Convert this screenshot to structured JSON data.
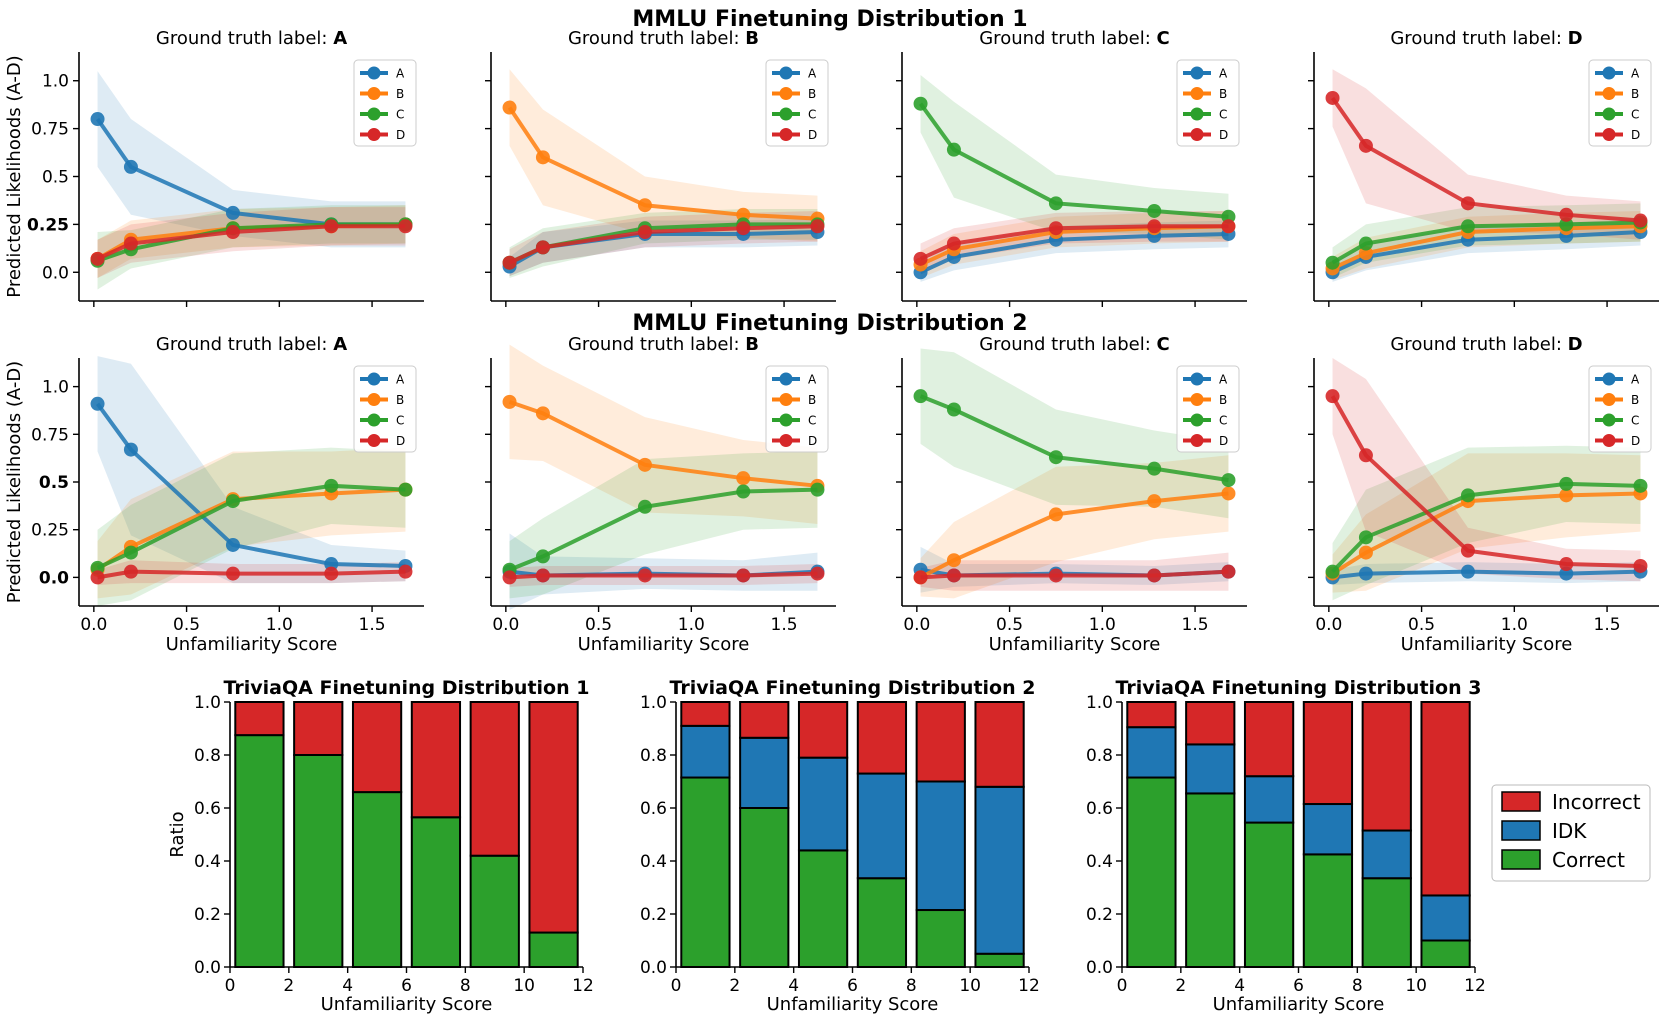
{
  "chart_data": {
    "mmlu": [
      {
        "suptitle": "MMLU Finetuning Distribution 1",
        "title_prefix": "Ground truth label: ",
        "ylabel": "Predicted Likelihoods (A-D)",
        "xlabel": "",
        "type": "line",
        "x": [
          0.02,
          0.2,
          0.75,
          1.28,
          1.68
        ],
        "xlim": [
          -0.08,
          1.78
        ],
        "ylim": [
          -0.15,
          1.15
        ],
        "yticks": [
          "0.0",
          "0.25",
          "0.5",
          "0.75",
          "1.0"
        ],
        "ytick_values": [
          0,
          0.25,
          0.5,
          0.75,
          1.0
        ],
        "bold_ytick": "0.25",
        "xticks": [],
        "legend": [
          "A",
          "B",
          "C",
          "D"
        ],
        "panels": [
          {
            "label": "A",
            "series": [
              {
                "name": "A",
                "values": [
                  0.8,
                  0.55,
                  0.31,
                  0.25,
                  0.25
                ],
                "band": [
                  0.25,
                  0.25,
                  0.12,
                  0.12,
                  0.12
                ]
              },
              {
                "name": "B",
                "values": [
                  0.07,
                  0.17,
                  0.23,
                  0.24,
                  0.25
                ],
                "band": [
                  0.1,
                  0.1,
                  0.1,
                  0.1,
                  0.1
                ]
              },
              {
                "name": "C",
                "values": [
                  0.06,
                  0.12,
                  0.23,
                  0.25,
                  0.25
                ],
                "band": [
                  0.15,
                  0.1,
                  0.1,
                  0.1,
                  0.1
                ]
              },
              {
                "name": "D",
                "values": [
                  0.07,
                  0.15,
                  0.21,
                  0.24,
                  0.24
                ],
                "band": [
                  0.1,
                  0.1,
                  0.1,
                  0.1,
                  0.1
                ]
              }
            ]
          },
          {
            "label": "B",
            "series": [
              {
                "name": "A",
                "values": [
                  0.03,
                  0.13,
                  0.2,
                  0.2,
                  0.21
                ],
                "band": [
                  0.05,
                  0.08,
                  0.07,
                  0.07,
                  0.07
                ]
              },
              {
                "name": "B",
                "values": [
                  0.86,
                  0.6,
                  0.35,
                  0.3,
                  0.28
                ],
                "band": [
                  0.2,
                  0.25,
                  0.15,
                  0.12,
                  0.12
                ]
              },
              {
                "name": "C",
                "values": [
                  0.05,
                  0.13,
                  0.23,
                  0.25,
                  0.25
                ],
                "band": [
                  0.08,
                  0.1,
                  0.08,
                  0.08,
                  0.08
                ]
              },
              {
                "name": "D",
                "values": [
                  0.05,
                  0.13,
                  0.21,
                  0.23,
                  0.24
                ],
                "band": [
                  0.07,
                  0.08,
                  0.08,
                  0.08,
                  0.08
                ]
              }
            ]
          },
          {
            "label": "C",
            "series": [
              {
                "name": "A",
                "values": [
                  0.0,
                  0.08,
                  0.17,
                  0.19,
                  0.2
                ],
                "band": [
                  0.05,
                  0.07,
                  0.07,
                  0.07,
                  0.07
                ]
              },
              {
                "name": "B",
                "values": [
                  0.04,
                  0.12,
                  0.21,
                  0.23,
                  0.24
                ],
                "band": [
                  0.07,
                  0.08,
                  0.08,
                  0.08,
                  0.08
                ]
              },
              {
                "name": "C",
                "values": [
                  0.88,
                  0.64,
                  0.36,
                  0.32,
                  0.29
                ],
                "band": [
                  0.15,
                  0.25,
                  0.15,
                  0.12,
                  0.12
                ]
              },
              {
                "name": "D",
                "values": [
                  0.07,
                  0.15,
                  0.23,
                  0.24,
                  0.24
                ],
                "band": [
                  0.08,
                  0.08,
                  0.08,
                  0.08,
                  0.08
                ]
              }
            ]
          },
          {
            "label": "D",
            "series": [
              {
                "name": "A",
                "values": [
                  0.0,
                  0.08,
                  0.17,
                  0.19,
                  0.21
                ],
                "band": [
                  0.05,
                  0.07,
                  0.07,
                  0.07,
                  0.07
                ]
              },
              {
                "name": "B",
                "values": [
                  0.02,
                  0.1,
                  0.21,
                  0.23,
                  0.24
                ],
                "band": [
                  0.06,
                  0.08,
                  0.08,
                  0.08,
                  0.08
                ]
              },
              {
                "name": "C",
                "values": [
                  0.05,
                  0.15,
                  0.24,
                  0.25,
                  0.26
                ],
                "band": [
                  0.08,
                  0.1,
                  0.1,
                  0.1,
                  0.1
                ]
              },
              {
                "name": "D",
                "values": [
                  0.91,
                  0.66,
                  0.36,
                  0.3,
                  0.27
                ],
                "band": [
                  0.15,
                  0.3,
                  0.15,
                  0.1,
                  0.1
                ]
              }
            ]
          }
        ]
      },
      {
        "suptitle": "MMLU Finetuning Distribution 2",
        "title_prefix": "Ground truth label: ",
        "ylabel": "Predicted Likelihoods (A-D)",
        "xlabel": "Unfamiliarity Score",
        "type": "line",
        "x": [
          0.02,
          0.2,
          0.75,
          1.28,
          1.68
        ],
        "xlim": [
          -0.08,
          1.78
        ],
        "ylim": [
          -0.15,
          1.15
        ],
        "yticks": [
          "0.0",
          "0.25",
          "0.5",
          "0.75",
          "1.0"
        ],
        "ytick_values": [
          0,
          0.25,
          0.5,
          0.75,
          1.0
        ],
        "bold_ytick": "0.5",
        "bold_ytick2": "0.0",
        "xticks": [
          "0.0",
          "0.5",
          "1.0",
          "1.5"
        ],
        "xtick_values": [
          0,
          0.5,
          1.0,
          1.5
        ],
        "legend": [
          "A",
          "B",
          "C",
          "D"
        ],
        "panels": [
          {
            "label": "A",
            "series": [
              {
                "name": "A",
                "values": [
                  0.91,
                  0.67,
                  0.17,
                  0.07,
                  0.06
                ],
                "band": [
                  0.25,
                  0.45,
                  0.2,
                  0.1,
                  0.08
                ]
              },
              {
                "name": "B",
                "values": [
                  0.04,
                  0.16,
                  0.41,
                  0.44,
                  0.46
                ],
                "band": [
                  0.15,
                  0.25,
                  0.25,
                  0.22,
                  0.22
                ]
              },
              {
                "name": "C",
                "values": [
                  0.05,
                  0.13,
                  0.4,
                  0.48,
                  0.46
                ],
                "band": [
                  0.2,
                  0.25,
                  0.25,
                  0.2,
                  0.2
                ]
              },
              {
                "name": "D",
                "values": [
                  0.0,
                  0.03,
                  0.02,
                  0.02,
                  0.03
                ],
                "band": [
                  0.04,
                  0.06,
                  0.05,
                  0.05,
                  0.05
                ]
              }
            ]
          },
          {
            "label": "B",
            "series": [
              {
                "name": "A",
                "values": [
                  0.03,
                  0.01,
                  0.02,
                  0.01,
                  0.03
                ],
                "band": [
                  0.2,
                  0.1,
                  0.08,
                  0.08,
                  0.1
                ]
              },
              {
                "name": "B",
                "values": [
                  0.92,
                  0.86,
                  0.59,
                  0.52,
                  0.48
                ],
                "band": [
                  0.3,
                  0.25,
                  0.25,
                  0.2,
                  0.2
                ]
              },
              {
                "name": "C",
                "values": [
                  0.04,
                  0.11,
                  0.37,
                  0.45,
                  0.46
                ],
                "band": [
                  0.15,
                  0.2,
                  0.25,
                  0.2,
                  0.2
                ]
              },
              {
                "name": "D",
                "values": [
                  0.0,
                  0.01,
                  0.01,
                  0.01,
                  0.02
                ],
                "band": [
                  0.05,
                  0.05,
                  0.05,
                  0.05,
                  0.05
                ]
              }
            ]
          },
          {
            "label": "C",
            "series": [
              {
                "name": "A",
                "values": [
                  0.04,
                  0.01,
                  0.02,
                  0.01,
                  0.03
                ],
                "band": [
                  0.12,
                  0.06,
                  0.05,
                  0.05,
                  0.05
                ]
              },
              {
                "name": "B",
                "values": [
                  0.0,
                  0.09,
                  0.33,
                  0.4,
                  0.44
                ],
                "band": [
                  0.1,
                  0.2,
                  0.25,
                  0.2,
                  0.2
                ]
              },
              {
                "name": "C",
                "values": [
                  0.95,
                  0.88,
                  0.63,
                  0.57,
                  0.51
                ],
                "band": [
                  0.25,
                  0.3,
                  0.25,
                  0.2,
                  0.2
                ]
              },
              {
                "name": "D",
                "values": [
                  0.0,
                  0.01,
                  0.01,
                  0.01,
                  0.03
                ],
                "band": [
                  0.05,
                  0.08,
                  0.08,
                  0.08,
                  0.1
                ]
              }
            ]
          },
          {
            "label": "D",
            "series": [
              {
                "name": "A",
                "values": [
                  0.0,
                  0.02,
                  0.03,
                  0.02,
                  0.03
                ],
                "band": [
                  0.04,
                  0.05,
                  0.05,
                  0.05,
                  0.05
                ]
              },
              {
                "name": "B",
                "values": [
                  0.02,
                  0.13,
                  0.4,
                  0.43,
                  0.44
                ],
                "band": [
                  0.1,
                  0.2,
                  0.25,
                  0.22,
                  0.2
                ]
              },
              {
                "name": "C",
                "values": [
                  0.03,
                  0.21,
                  0.43,
                  0.49,
                  0.48
                ],
                "band": [
                  0.15,
                  0.25,
                  0.25,
                  0.2,
                  0.2
                ]
              },
              {
                "name": "D",
                "values": [
                  0.95,
                  0.64,
                  0.14,
                  0.07,
                  0.06
                ],
                "band": [
                  0.2,
                  0.4,
                  0.12,
                  0.08,
                  0.08
                ]
              }
            ]
          }
        ]
      }
    ],
    "triviaqa": [
      {
        "type": "bar",
        "title": "TriviaQA Finetuning Distribution 1",
        "ylabel": "Ratio",
        "xlabel": "Unfamiliarity Score",
        "xlim": [
          0,
          12
        ],
        "ylim": [
          0,
          1
        ],
        "xticks": [
          "0",
          "2",
          "4",
          "6",
          "8",
          "10",
          "12"
        ],
        "yticks": [
          "0.0",
          "0.2",
          "0.4",
          "0.6",
          "0.8",
          "1.0"
        ],
        "x_centers": [
          1,
          3,
          5,
          7,
          9,
          11
        ],
        "series": [
          {
            "name": "Correct",
            "values": [
              0.875,
              0.8,
              0.66,
              0.565,
              0.42,
              0.13
            ]
          },
          {
            "name": "IDK",
            "values": [
              0,
              0,
              0,
              0,
              0,
              0
            ]
          },
          {
            "name": "Incorrect",
            "values": [
              0.125,
              0.2,
              0.34,
              0.435,
              0.58,
              0.87
            ]
          }
        ]
      },
      {
        "type": "bar",
        "title": "TriviaQA Finetuning Distribution 2",
        "ylabel": "",
        "xlabel": "Unfamiliarity Score",
        "xlim": [
          0,
          12
        ],
        "ylim": [
          0,
          1
        ],
        "xticks": [
          "0",
          "2",
          "4",
          "6",
          "8",
          "10",
          "12"
        ],
        "yticks": [
          "0.0",
          "0.2",
          "0.4",
          "0.6",
          "0.8",
          "1.0"
        ],
        "x_centers": [
          1,
          3,
          5,
          7,
          9,
          11
        ],
        "series": [
          {
            "name": "Correct",
            "values": [
              0.715,
              0.6,
              0.44,
              0.335,
              0.215,
              0.05
            ]
          },
          {
            "name": "IDK",
            "values": [
              0.195,
              0.265,
              0.35,
              0.395,
              0.485,
              0.63
            ]
          },
          {
            "name": "Incorrect",
            "values": [
              0.09,
              0.135,
              0.21,
              0.27,
              0.3,
              0.32
            ]
          }
        ]
      },
      {
        "type": "bar",
        "title": "TriviaQA Finetuning Distribution 3",
        "ylabel": "",
        "xlabel": "Unfamiliarity Score",
        "xlim": [
          0,
          12
        ],
        "ylim": [
          0,
          1
        ],
        "xticks": [
          "0",
          "2",
          "4",
          "6",
          "8",
          "10",
          "12"
        ],
        "yticks": [
          "0.0",
          "0.2",
          "0.4",
          "0.6",
          "0.8",
          "1.0"
        ],
        "x_centers": [
          1,
          3,
          5,
          7,
          9,
          11
        ],
        "series": [
          {
            "name": "Correct",
            "values": [
              0.715,
              0.655,
              0.545,
              0.425,
              0.335,
              0.1
            ]
          },
          {
            "name": "IDK",
            "values": [
              0.19,
              0.185,
              0.175,
              0.19,
              0.18,
              0.17
            ]
          },
          {
            "name": "Incorrect",
            "values": [
              0.095,
              0.16,
              0.28,
              0.385,
              0.485,
              0.73
            ]
          }
        ]
      }
    ],
    "bar_legend": [
      "Incorrect",
      "IDK",
      "Correct"
    ]
  },
  "colors": {
    "A": "#1f77b4",
    "B": "#ff7f0e",
    "C": "#2ca02c",
    "D": "#d62728",
    "Correct": "#2ca02c",
    "IDK": "#1f77b4",
    "Incorrect": "#d62728"
  }
}
